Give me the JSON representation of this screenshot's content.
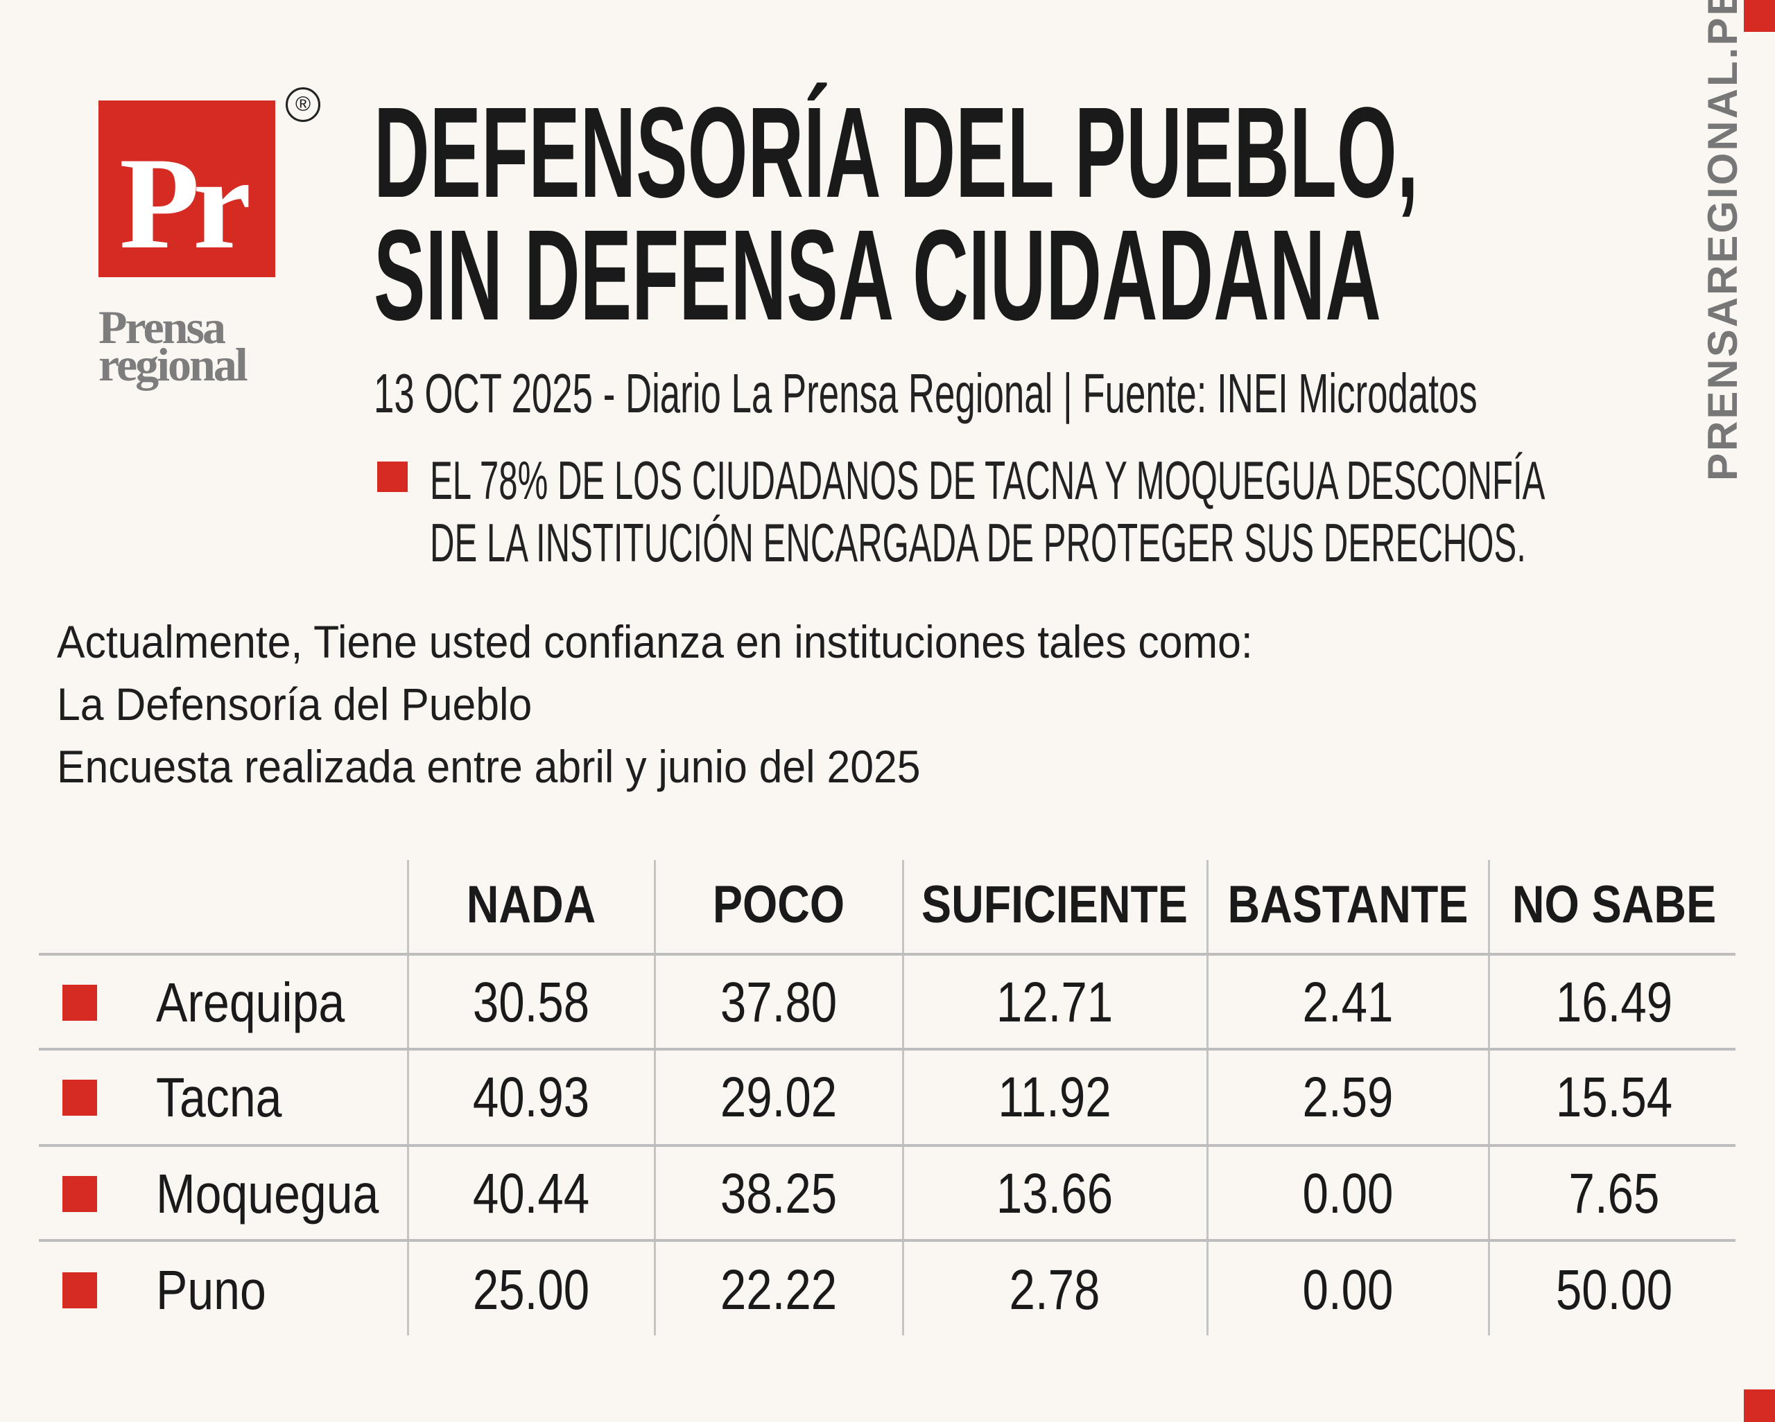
{
  "logo": {
    "mark": "Pr",
    "registered": "®",
    "brand_line1": "Prensa",
    "brand_line2": "regional"
  },
  "title": {
    "line1": "DEFENSORÍA DEL PUEBLO,",
    "line2": "SIN DEFENSA CIUDADANA"
  },
  "dateline": "13 OCT 2025 - Diario La Prensa Regional | Fuente: INEI Microdatos",
  "highlight": {
    "line1": "EL 78% DE LOS CIUDADANOS DE TACNA Y MOQUEGUA DESCONFÍA",
    "line2": "DE LA INSTITUCIÓN ENCARGADA DE PROTEGER SUS DERECHOS."
  },
  "question": {
    "line1": "Actualmente, Tiene usted confianza en instituciones tales como:",
    "line2": "La Defensoría del Pueblo",
    "line3": "Encuesta realizada entre abril y junio del 2025"
  },
  "side_url": "PRENSAREGIONAL.PE",
  "colors": {
    "accent": "#d52b22",
    "background": "#faf6f2",
    "gray": "#777777"
  },
  "chart_data": {
    "type": "table",
    "columns": [
      "NADA",
      "POCO",
      "SUFICIENTE",
      "BASTANTE",
      "NO SABE"
    ],
    "rows": [
      {
        "name": "Arequipa",
        "values": [
          "30.58",
          "37.80",
          "12.71",
          "2.41",
          "16.49"
        ]
      },
      {
        "name": "Tacna",
        "values": [
          "40.93",
          "29.02",
          "11.92",
          "2.59",
          "15.54"
        ]
      },
      {
        "name": "Moquegua",
        "values": [
          "40.44",
          "38.25",
          "13.66",
          "0.00",
          "7.65"
        ]
      },
      {
        "name": "Puno",
        "values": [
          "25.00",
          "22.22",
          "2.78",
          "0.00",
          "50.00"
        ]
      }
    ]
  }
}
